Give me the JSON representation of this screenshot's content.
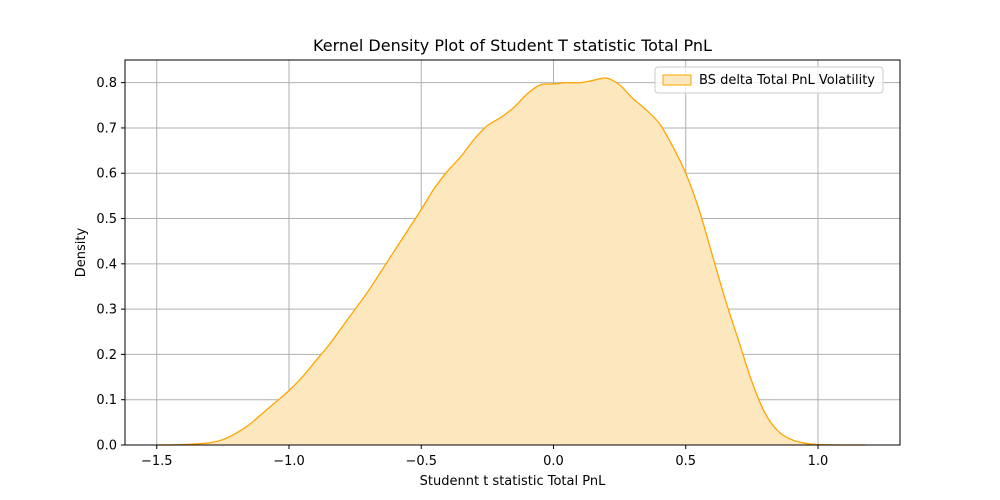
{
  "chart_data": {
    "type": "area",
    "title": "Kernel Density Plot of Student T statistic Total PnL",
    "xlabel": "Studennt t statistic Total PnL",
    "ylabel": "Density",
    "xlim": [
      -1.62,
      1.31
    ],
    "ylim": [
      0,
      0.85
    ],
    "x_ticks": [
      -1.5,
      -1.0,
      -0.5,
      0.0,
      0.5,
      1.0
    ],
    "x_tick_labels": [
      "−1.5",
      "−1.0",
      "−0.5",
      "0.0",
      "0.5",
      "1.0"
    ],
    "y_ticks": [
      0.0,
      0.1,
      0.2,
      0.3,
      0.4,
      0.5,
      0.6,
      0.7,
      0.8
    ],
    "y_tick_labels": [
      "0.0",
      "0.1",
      "0.2",
      "0.3",
      "0.4",
      "0.5",
      "0.6",
      "0.7",
      "0.8"
    ],
    "grid": true,
    "legend_position": "top-right",
    "colors": {
      "line": "#ffa500",
      "fill": "#fde7be",
      "grid": "#b0b0b0"
    },
    "series": [
      {
        "name": "BS delta Total PnL Volatility",
        "x": [
          -1.5,
          -1.4,
          -1.3,
          -1.25,
          -1.2,
          -1.15,
          -1.1,
          -1.05,
          -1.0,
          -0.95,
          -0.9,
          -0.85,
          -0.8,
          -0.75,
          -0.7,
          -0.65,
          -0.6,
          -0.55,
          -0.5,
          -0.45,
          -0.4,
          -0.35,
          -0.3,
          -0.25,
          -0.2,
          -0.15,
          -0.1,
          -0.05,
          0.0,
          0.05,
          0.1,
          0.15,
          0.2,
          0.25,
          0.3,
          0.35,
          0.4,
          0.45,
          0.5,
          0.55,
          0.6,
          0.65,
          0.7,
          0.75,
          0.8,
          0.85,
          0.9,
          0.95,
          1.0,
          1.1,
          1.18
        ],
        "y": [
          0.0,
          0.001,
          0.005,
          0.012,
          0.026,
          0.045,
          0.07,
          0.095,
          0.12,
          0.15,
          0.185,
          0.22,
          0.26,
          0.3,
          0.34,
          0.385,
          0.43,
          0.475,
          0.52,
          0.567,
          0.605,
          0.637,
          0.675,
          0.705,
          0.723,
          0.745,
          0.775,
          0.795,
          0.797,
          0.8,
          0.8,
          0.805,
          0.81,
          0.795,
          0.765,
          0.74,
          0.71,
          0.66,
          0.6,
          0.52,
          0.42,
          0.32,
          0.23,
          0.14,
          0.07,
          0.03,
          0.012,
          0.004,
          0.001,
          0.0,
          0.0
        ]
      }
    ]
  }
}
